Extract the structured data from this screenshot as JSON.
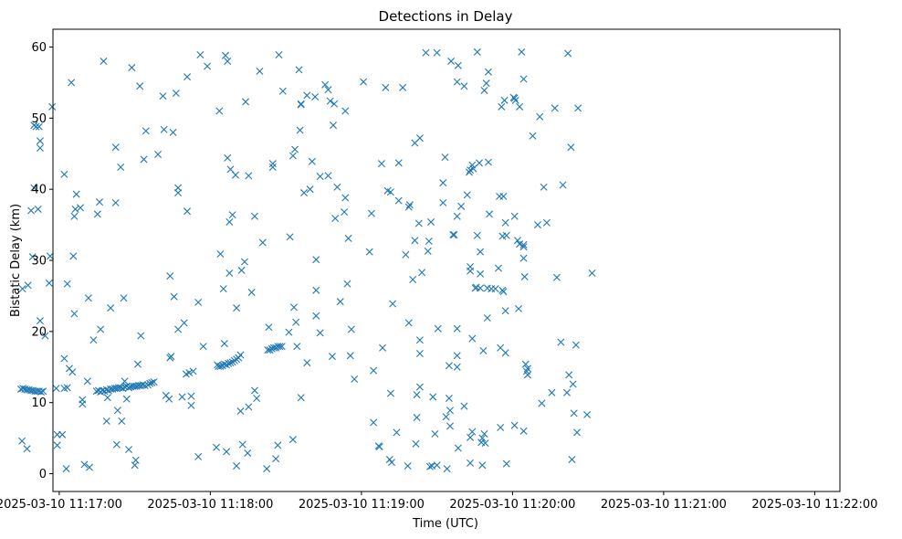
{
  "chart_data": {
    "type": "scatter",
    "title": "Detections in Delay",
    "xlabel": "Time (UTC)",
    "ylabel": "Bistatic Delay (km)",
    "marker": "x",
    "color": "#1f77b4",
    "grid": false,
    "xlim": [
      -2.5,
      310.0
    ],
    "ylim": [
      -2.5,
      62.5
    ],
    "x_tick_values": [
      0,
      60,
      120,
      180,
      240,
      300
    ],
    "x_tick_labels": [
      "2025-03-10 11:17:00",
      "2025-03-10 11:18:00",
      "2025-03-10 11:19:00",
      "2025-03-10 11:20:00",
      "2025-03-10 11:21:00",
      "2025-03-10 11:22:00"
    ],
    "y_tick_values": [
      0,
      10,
      20,
      30,
      40,
      50,
      60
    ],
    "y_tick_labels": [
      "0",
      "10",
      "20",
      "30",
      "40",
      "50",
      "60"
    ],
    "x_unit_note": "seconds after 2025-03-10 11:17:00 UTC",
    "points": [
      [
        -15.2,
        11.9
      ],
      [
        -14.4,
        12.0
      ],
      [
        -13.6,
        11.9
      ],
      [
        -12.8,
        11.8
      ],
      [
        -12.0,
        11.8
      ],
      [
        -11.2,
        11.7
      ],
      [
        -10.4,
        11.7
      ],
      [
        -9.6,
        11.6
      ],
      [
        -8.8,
        11.6
      ],
      [
        -8.0,
        11.6
      ],
      [
        -7.2,
        11.5
      ],
      [
        -6.4,
        11.6
      ],
      [
        -14.6,
        26.0
      ],
      [
        -12.4,
        26.5
      ],
      [
        -11.2,
        37.0
      ],
      [
        -10.6,
        30.5
      ],
      [
        -10.0,
        49.0
      ],
      [
        -10.0,
        40.2
      ],
      [
        -9.2,
        48.8
      ],
      [
        -8.4,
        37.2
      ],
      [
        -8.0,
        48.8
      ],
      [
        -7.6,
        21.5
      ],
      [
        -7.6,
        46.8
      ],
      [
        -7.6,
        45.8
      ],
      [
        -5.6,
        19.4
      ],
      [
        -4.0,
        26.8
      ],
      [
        -3.6,
        30.6
      ],
      [
        -2.8,
        51.6
      ],
      [
        -14.8,
        4.6
      ],
      [
        -12.8,
        3.5
      ],
      [
        -1.2,
        12.0
      ],
      [
        -0.8,
        5.5
      ],
      [
        -0.8,
        4.0
      ],
      [
        1.2,
        5.5
      ],
      [
        2.0,
        12.0
      ],
      [
        3.2,
        12.1
      ],
      [
        2.0,
        16.2
      ],
      [
        2.0,
        42.1
      ],
      [
        2.8,
        0.7
      ],
      [
        3.2,
        26.7
      ],
      [
        4.0,
        14.8
      ],
      [
        4.8,
        55.0
      ],
      [
        5.2,
        14.3
      ],
      [
        5.6,
        30.6
      ],
      [
        6.0,
        36.2
      ],
      [
        6.0,
        22.5
      ],
      [
        6.4,
        37.2
      ],
      [
        6.8,
        39.3
      ],
      [
        8.4,
        37.4
      ],
      [
        9.2,
        10.4
      ],
      [
        9.2,
        9.8
      ],
      [
        10.0,
        1.3
      ],
      [
        11.2,
        13.0
      ],
      [
        11.6,
        24.7
      ],
      [
        12.0,
        0.9
      ],
      [
        13.6,
        18.8
      ],
      [
        14.8,
        11.6
      ],
      [
        15.6,
        11.7
      ],
      [
        16.4,
        11.5
      ],
      [
        17.2,
        11.7
      ],
      [
        18.0,
        11.6
      ],
      [
        18.8,
        11.8
      ],
      [
        19.6,
        11.7
      ],
      [
        20.4,
        11.9
      ],
      [
        21.2,
        11.9
      ],
      [
        22.0,
        12.0
      ],
      [
        22.8,
        12.0
      ],
      [
        23.6,
        12.1
      ],
      [
        24.4,
        12.1
      ],
      [
        25.2,
        12.0
      ],
      [
        26.0,
        12.2
      ],
      [
        26.8,
        12.3
      ],
      [
        27.6,
        12.1
      ],
      [
        28.4,
        12.2
      ],
      [
        29.2,
        12.3
      ],
      [
        30.0,
        12.3
      ],
      [
        30.8,
        12.3
      ],
      [
        31.6,
        12.4
      ],
      [
        32.4,
        12.4
      ],
      [
        33.2,
        12.5
      ],
      [
        34.0,
        12.4
      ],
      [
        35.2,
        12.5
      ],
      [
        36.0,
        12.7
      ],
      [
        36.8,
        12.8
      ],
      [
        37.6,
        12.9
      ],
      [
        15.2,
        36.5
      ],
      [
        16.0,
        38.2
      ],
      [
        16.4,
        20.3
      ],
      [
        17.6,
        58.0
      ],
      [
        18.8,
        7.4
      ],
      [
        19.2,
        10.7
      ],
      [
        20.4,
        23.3
      ],
      [
        22.4,
        45.9
      ],
      [
        22.4,
        38.1
      ],
      [
        22.8,
        4.1
      ],
      [
        23.2,
        8.9
      ],
      [
        24.4,
        43.1
      ],
      [
        24.8,
        7.4
      ],
      [
        25.6,
        24.7
      ],
      [
        26.0,
        13.0
      ],
      [
        26.8,
        10.5
      ],
      [
        27.6,
        3.4
      ],
      [
        28.8,
        57.1
      ],
      [
        30.0,
        1.2
      ],
      [
        30.4,
        1.9
      ],
      [
        31.2,
        15.4
      ],
      [
        32.0,
        54.5
      ],
      [
        32.4,
        19.4
      ],
      [
        33.6,
        44.2
      ],
      [
        34.4,
        48.2
      ],
      [
        39.2,
        44.9
      ],
      [
        41.2,
        53.1
      ],
      [
        41.6,
        48.4
      ],
      [
        42.4,
        11.0
      ],
      [
        43.6,
        10.5
      ],
      [
        44.0,
        27.8
      ],
      [
        44.0,
        16.3
      ],
      [
        44.4,
        16.5
      ],
      [
        45.2,
        48.0
      ],
      [
        45.6,
        24.9
      ],
      [
        46.4,
        53.5
      ],
      [
        47.2,
        20.3
      ],
      [
        47.2,
        40.2
      ],
      [
        47.2,
        39.5
      ],
      [
        48.8,
        10.8
      ],
      [
        49.6,
        21.2
      ],
      [
        50.4,
        14.0
      ],
      [
        50.8,
        55.8
      ],
      [
        50.8,
        36.9
      ],
      [
        51.6,
        14.2
      ],
      [
        52.4,
        10.9
      ],
      [
        52.4,
        9.6
      ],
      [
        53.2,
        14.4
      ],
      [
        55.2,
        24.1
      ],
      [
        55.2,
        2.4
      ],
      [
        56.0,
        58.9
      ],
      [
        57.2,
        17.9
      ],
      [
        58.8,
        57.3
      ],
      [
        62.8,
        15.3
      ],
      [
        63.2,
        15.1
      ],
      [
        64.0,
        15.1
      ],
      [
        64.8,
        15.2
      ],
      [
        65.6,
        15.4
      ],
      [
        66.4,
        15.3
      ],
      [
        67.2,
        15.5
      ],
      [
        68.0,
        15.6
      ],
      [
        68.8,
        15.7
      ],
      [
        69.6,
        15.9
      ],
      [
        70.4,
        16.1
      ],
      [
        71.2,
        16.3
      ],
      [
        72.0,
        16.7
      ],
      [
        62.4,
        3.7
      ],
      [
        63.6,
        51.0
      ],
      [
        64.0,
        30.9
      ],
      [
        65.2,
        26.0
      ],
      [
        65.6,
        18.3
      ],
      [
        66.0,
        58.8
      ],
      [
        66.4,
        3.1
      ],
      [
        66.8,
        58.0
      ],
      [
        66.8,
        44.4
      ],
      [
        67.6,
        35.4
      ],
      [
        67.6,
        28.2
      ],
      [
        68.0,
        42.8
      ],
      [
        68.8,
        36.4
      ],
      [
        70.0,
        42.0
      ],
      [
        70.4,
        23.3
      ],
      [
        70.4,
        1.1
      ],
      [
        72.0,
        8.8
      ],
      [
        72.4,
        28.6
      ],
      [
        72.8,
        4.1
      ],
      [
        73.6,
        29.8
      ],
      [
        74.0,
        52.3
      ],
      [
        74.8,
        2.9
      ],
      [
        75.2,
        9.4
      ],
      [
        75.2,
        41.9
      ],
      [
        76.4,
        25.5
      ],
      [
        77.6,
        36.2
      ],
      [
        77.6,
        11.7
      ],
      [
        78.4,
        10.6
      ],
      [
        79.6,
        56.6
      ],
      [
        80.8,
        32.5
      ],
      [
        82.4,
        0.7
      ],
      [
        82.8,
        17.4
      ],
      [
        83.6,
        17.4
      ],
      [
        84.4,
        17.6
      ],
      [
        85.2,
        17.7
      ],
      [
        86.0,
        17.7
      ],
      [
        86.8,
        17.9
      ],
      [
        87.6,
        17.9
      ],
      [
        88.4,
        17.9
      ],
      [
        83.2,
        20.6
      ],
      [
        84.8,
        43.1
      ],
      [
        84.8,
        43.6
      ],
      [
        86.0,
        2.1
      ],
      [
        86.8,
        4.0
      ],
      [
        87.2,
        58.9
      ],
      [
        88.8,
        53.8
      ],
      [
        91.2,
        19.9
      ],
      [
        91.6,
        33.3
      ],
      [
        92.8,
        44.7
      ],
      [
        92.8,
        4.8
      ],
      [
        93.2,
        23.4
      ],
      [
        93.6,
        45.6
      ],
      [
        94.0,
        21.3
      ],
      [
        94.4,
        17.9
      ],
      [
        95.2,
        56.8
      ],
      [
        95.6,
        48.3
      ],
      [
        96.0,
        51.9
      ],
      [
        96.0,
        52.0
      ],
      [
        96.0,
        10.7
      ],
      [
        97.2,
        39.5
      ],
      [
        98.4,
        53.2
      ],
      [
        98.4,
        15.6
      ],
      [
        99.6,
        40.0
      ],
      [
        100.4,
        43.9
      ],
      [
        101.6,
        53.0
      ],
      [
        102.0,
        22.2
      ],
      [
        102.0,
        25.8
      ],
      [
        102.0,
        30.1
      ],
      [
        103.6,
        41.8
      ],
      [
        103.6,
        19.8
      ],
      [
        105.6,
        54.7
      ],
      [
        106.8,
        41.9
      ],
      [
        106.8,
        54.0
      ],
      [
        107.6,
        52.4
      ],
      [
        108.4,
        16.5
      ],
      [
        108.8,
        49.0
      ],
      [
        109.2,
        52.0
      ],
      [
        109.6,
        35.9
      ],
      [
        110.4,
        40.3
      ],
      [
        111.6,
        24.2
      ],
      [
        113.2,
        36.8
      ],
      [
        113.6,
        51.0
      ],
      [
        113.6,
        38.8
      ],
      [
        114.4,
        26.7
      ],
      [
        114.8,
        33.1
      ],
      [
        115.6,
        16.6
      ],
      [
        116.0,
        20.3
      ],
      [
        117.2,
        13.3
      ],
      [
        120.8,
        55.1
      ],
      [
        123.2,
        31.2
      ],
      [
        124.0,
        36.6
      ],
      [
        124.8,
        7.2
      ],
      [
        124.8,
        14.5
      ],
      [
        126.8,
        3.9
      ],
      [
        127.2,
        3.8
      ],
      [
        128.0,
        43.6
      ],
      [
        128.4,
        17.7
      ],
      [
        129.6,
        54.3
      ],
      [
        130.4,
        39.8
      ],
      [
        131.2,
        2.0
      ],
      [
        131.6,
        39.6
      ],
      [
        131.6,
        11.3
      ],
      [
        132.0,
        1.6
      ],
      [
        132.4,
        23.9
      ],
      [
        134.0,
        5.8
      ],
      [
        134.8,
        43.7
      ],
      [
        134.8,
        38.4
      ],
      [
        136.4,
        54.3
      ],
      [
        137.6,
        30.8
      ],
      [
        138.4,
        1.1
      ],
      [
        138.8,
        37.5
      ],
      [
        138.8,
        21.2
      ],
      [
        139.2,
        37.8
      ],
      [
        140.4,
        27.3
      ],
      [
        141.2,
        46.5
      ],
      [
        141.2,
        32.8
      ],
      [
        141.6,
        4.2
      ],
      [
        142.0,
        7.9
      ],
      [
        142.0,
        11.1
      ],
      [
        142.8,
        35.2
      ],
      [
        143.2,
        47.2
      ],
      [
        143.2,
        18.8
      ],
      [
        143.2,
        16.9
      ],
      [
        143.2,
        12.2
      ],
      [
        144.0,
        28.3
      ],
      [
        145.6,
        59.2
      ],
      [
        146.4,
        31.3
      ],
      [
        146.8,
        32.7
      ],
      [
        147.2,
        1.0
      ],
      [
        147.6,
        35.4
      ],
      [
        148.0,
        1.1
      ],
      [
        148.4,
        10.8
      ],
      [
        149.2,
        5.6
      ],
      [
        150.0,
        59.2
      ],
      [
        150.0,
        1.2
      ],
      [
        150.4,
        20.4
      ],
      [
        152.4,
        38.1
      ],
      [
        152.4,
        40.9
      ],
      [
        153.2,
        44.5
      ],
      [
        153.6,
        8.0
      ],
      [
        154.0,
        0.7
      ],
      [
        154.8,
        15.2
      ],
      [
        154.8,
        10.6
      ],
      [
        155.2,
        6.7
      ],
      [
        155.6,
        58.0
      ],
      [
        155.2,
        8.9
      ],
      [
        156.4,
        33.6
      ],
      [
        156.8,
        33.6
      ],
      [
        158.0,
        20.4
      ],
      [
        158.0,
        16.6
      ],
      [
        158.0,
        15.0
      ],
      [
        158.4,
        57.4
      ],
      [
        158.0,
        55.1
      ],
      [
        158.0,
        36.2
      ],
      [
        158.4,
        3.6
      ],
      [
        159.6,
        37.6
      ],
      [
        160.8,
        9.5
      ],
      [
        160.8,
        54.5
      ],
      [
        162.0,
        39.2
      ],
      [
        162.8,
        42.4
      ],
      [
        163.2,
        28.5
      ],
      [
        163.2,
        29.1
      ],
      [
        163.2,
        42.7
      ],
      [
        164.0,
        43.4
      ],
      [
        164.0,
        19.0
      ],
      [
        164.4,
        42.9
      ],
      [
        164.0,
        5.9
      ],
      [
        163.2,
        5.1
      ],
      [
        163.2,
        1.5
      ],
      [
        165.2,
        26.1
      ],
      [
        165.6,
        26.2
      ],
      [
        166.0,
        59.3
      ],
      [
        166.0,
        33.5
      ],
      [
        166.8,
        43.7
      ],
      [
        167.2,
        31.2
      ],
      [
        167.2,
        28.1
      ],
      [
        167.2,
        26.1
      ],
      [
        167.6,
        4.4
      ],
      [
        168.0,
        5.0
      ],
      [
        168.0,
        1.2
      ],
      [
        168.4,
        17.3
      ],
      [
        168.8,
        53.9
      ],
      [
        168.8,
        5.6
      ],
      [
        169.2,
        4.3
      ],
      [
        169.6,
        54.9
      ],
      [
        170.0,
        26.1
      ],
      [
        170.0,
        21.9
      ],
      [
        170.4,
        56.5
      ],
      [
        170.4,
        43.8
      ],
      [
        170.8,
        36.5
      ],
      [
        171.6,
        26.0
      ],
      [
        173.2,
        26.0
      ],
      [
        174.4,
        28.9
      ],
      [
        174.8,
        39.0
      ],
      [
        175.2,
        6.5
      ],
      [
        175.2,
        17.7
      ],
      [
        175.6,
        51.6
      ],
      [
        176.0,
        25.8
      ],
      [
        176.0,
        33.4
      ],
      [
        176.4,
        39.0
      ],
      [
        176.4,
        25.6
      ],
      [
        176.8,
        52.5
      ],
      [
        177.2,
        35.3
      ],
      [
        177.2,
        22.9
      ],
      [
        177.2,
        17.0
      ],
      [
        177.6,
        1.4
      ],
      [
        177.6,
        33.5
      ],
      [
        180.4,
        52.9
      ],
      [
        180.8,
        52.8
      ],
      [
        180.8,
        36.2
      ],
      [
        180.8,
        6.8
      ],
      [
        181.2,
        52.5
      ],
      [
        182.0,
        32.8
      ],
      [
        182.4,
        23.2
      ],
      [
        182.8,
        51.6
      ],
      [
        182.8,
        32.3
      ],
      [
        183.6,
        59.3
      ],
      [
        184.4,
        32.2
      ],
      [
        184.4,
        31.9
      ],
      [
        184.4,
        55.5
      ],
      [
        184.4,
        30.3
      ],
      [
        184.8,
        27.7
      ],
      [
        184.4,
        6.0
      ],
      [
        185.2,
        15.4
      ],
      [
        185.6,
        14.4
      ],
      [
        186.0,
        14.8
      ],
      [
        186.0,
        13.9
      ],
      [
        188.0,
        47.5
      ],
      [
        190.0,
        35.0
      ],
      [
        190.8,
        50.2
      ],
      [
        191.6,
        9.9
      ],
      [
        192.4,
        40.3
      ],
      [
        193.6,
        35.3
      ],
      [
        195.6,
        11.4
      ],
      [
        196.8,
        51.4
      ],
      [
        197.6,
        27.6
      ],
      [
        199.2,
        18.5
      ],
      [
        200.0,
        40.6
      ],
      [
        201.6,
        11.4
      ],
      [
        202.0,
        59.1
      ],
      [
        202.4,
        13.9
      ],
      [
        203.2,
        45.9
      ],
      [
        203.6,
        2.0
      ],
      [
        204.0,
        12.6
      ],
      [
        204.4,
        8.5
      ],
      [
        205.2,
        18.1
      ],
      [
        205.6,
        5.8
      ],
      [
        206.0,
        51.4
      ],
      [
        209.6,
        8.3
      ],
      [
        211.6,
        28.2
      ]
    ]
  }
}
